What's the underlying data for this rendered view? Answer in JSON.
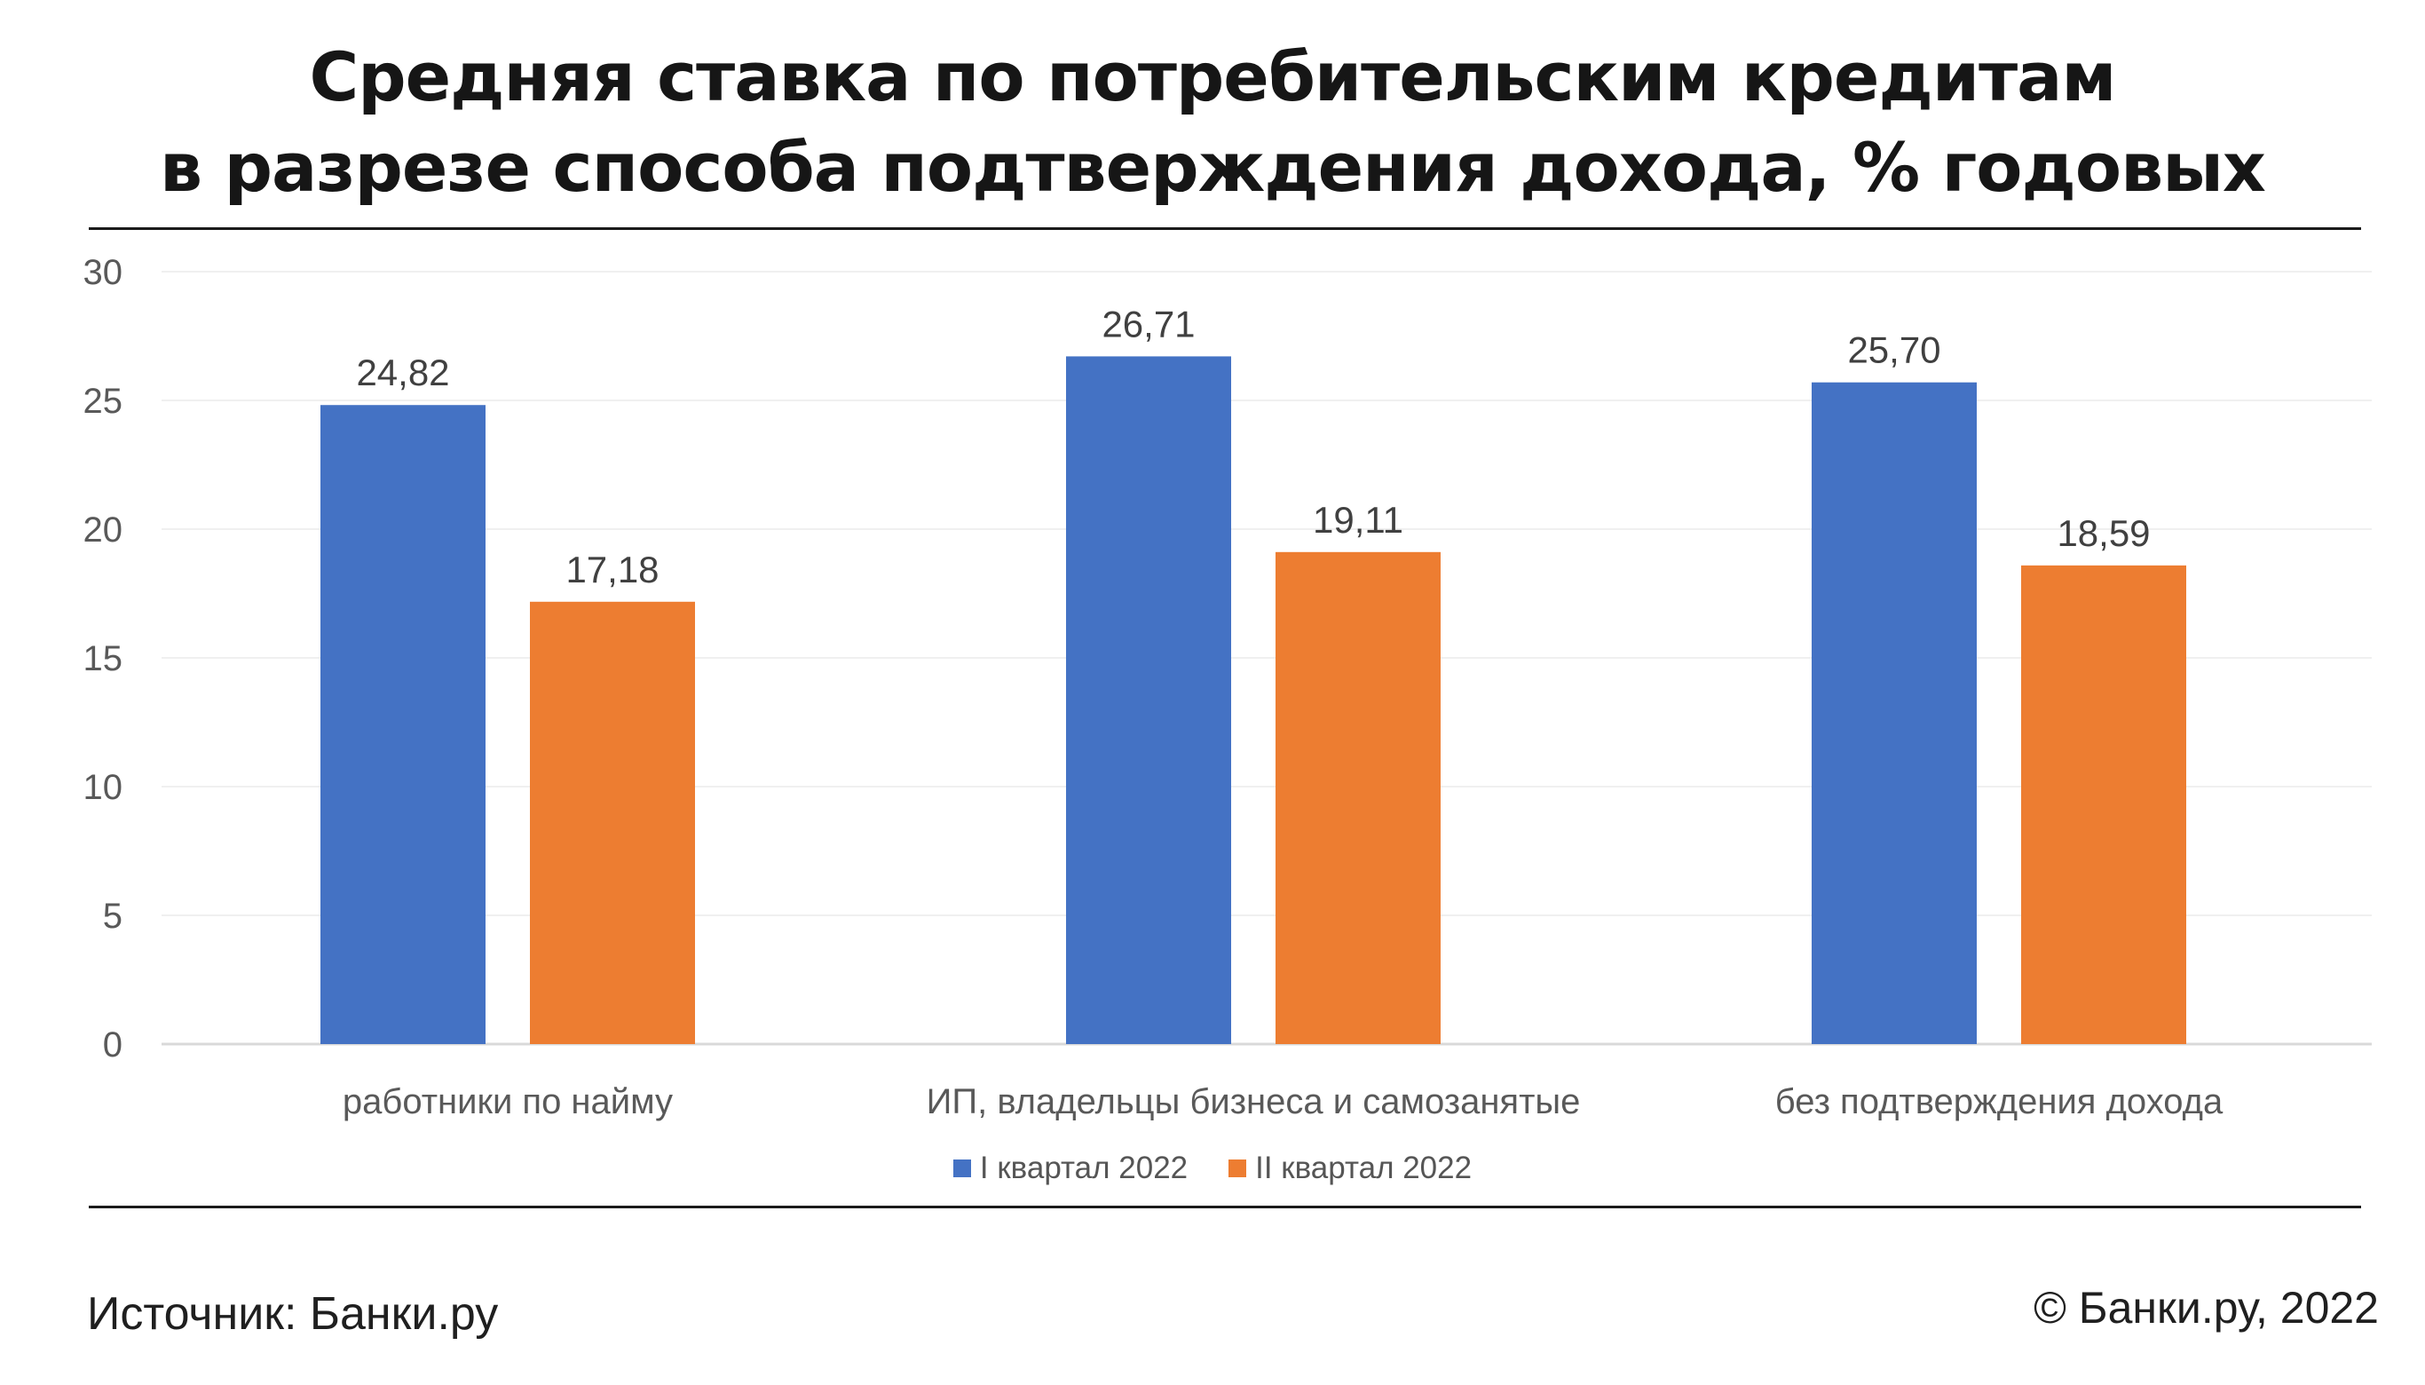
{
  "title": {
    "line1": "Средняя ставка по потребительским кредитам",
    "line2": "в разрезе способа подтверждения дохода, % годовых"
  },
  "source": "Источник: Банки.ру",
  "copyright": "© Банки.ру, 2022",
  "colors": {
    "series1": "#4472c4",
    "series2": "#ed7d31"
  },
  "chart_data": {
    "type": "bar",
    "title": "Средняя ставка по потребительским кредитам в разрезе способа подтверждения дохода, % годовых",
    "xlabel": "",
    "ylabel": "",
    "ylim": [
      0,
      30
    ],
    "yticks": [
      0,
      5,
      10,
      15,
      20,
      25,
      30
    ],
    "grid": true,
    "legend_position": "bottom",
    "categories": [
      "работники по найму",
      "ИП, владельцы бизнеса и самозанятые",
      "без подтверждения дохода"
    ],
    "series": [
      {
        "name": "I квартал 2022",
        "values": [
          24.82,
          26.71,
          25.7
        ],
        "labels": [
          "24,82",
          "26,71",
          "25,70"
        ]
      },
      {
        "name": "II квартал 2022",
        "values": [
          17.18,
          19.11,
          18.59
        ],
        "labels": [
          "17,18",
          "19,11",
          "18,59"
        ]
      }
    ]
  }
}
